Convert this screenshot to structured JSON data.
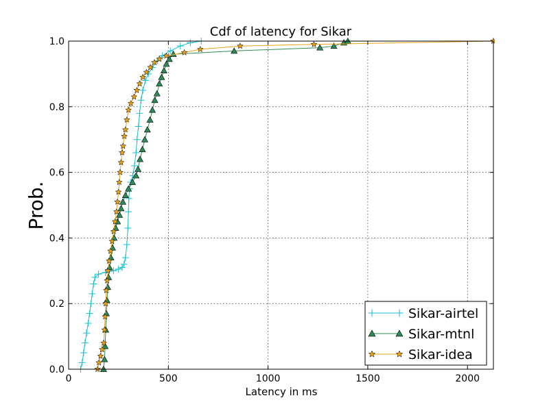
{
  "chart_data": {
    "type": "line",
    "title": "Cdf of latency for Sikar",
    "xlabel": "Latency in ms",
    "ylabel": "Prob.",
    "xlim": [
      0,
      2130
    ],
    "ylim": [
      0.0,
      1.0
    ],
    "x_ticks": [
      0,
      500,
      1000,
      1500,
      2000
    ],
    "x_tick_labels": [
      "0",
      "500",
      "1000",
      "1500",
      "2000"
    ],
    "y_ticks": [
      0.0,
      0.2,
      0.4,
      0.6,
      0.8,
      1.0
    ],
    "y_tick_labels": [
      "0.0",
      "0.2",
      "0.4",
      "0.6",
      "0.8",
      "1.0"
    ],
    "grid": true,
    "legend_position": "lower right",
    "series": [
      {
        "name": "Sikar-airtel",
        "color": "#17becf",
        "marker": "plus",
        "points": [
          [
            60,
            0.0
          ],
          [
            68,
            0.02
          ],
          [
            75,
            0.05
          ],
          [
            82,
            0.08
          ],
          [
            90,
            0.11
          ],
          [
            98,
            0.14
          ],
          [
            105,
            0.17
          ],
          [
            112,
            0.2
          ],
          [
            118,
            0.23
          ],
          [
            125,
            0.26
          ],
          [
            132,
            0.28
          ],
          [
            150,
            0.29
          ],
          [
            185,
            0.295
          ],
          [
            225,
            0.3
          ],
          [
            250,
            0.305
          ],
          [
            268,
            0.31
          ],
          [
            278,
            0.32
          ],
          [
            285,
            0.34
          ],
          [
            292,
            0.38
          ],
          [
            297,
            0.43
          ],
          [
            300,
            0.48
          ],
          [
            302,
            0.52
          ],
          [
            305,
            0.55
          ],
          [
            312,
            0.57
          ],
          [
            322,
            0.59
          ],
          [
            330,
            0.62
          ],
          [
            338,
            0.66
          ],
          [
            343,
            0.7
          ],
          [
            350,
            0.74
          ],
          [
            356,
            0.78
          ],
          [
            363,
            0.82
          ],
          [
            372,
            0.85
          ],
          [
            385,
            0.88
          ],
          [
            400,
            0.9
          ],
          [
            420,
            0.92
          ],
          [
            445,
            0.94
          ],
          [
            470,
            0.955
          ],
          [
            510,
            0.97
          ],
          [
            560,
            0.985
          ],
          [
            610,
            0.995
          ],
          [
            665,
            1.0
          ]
        ]
      },
      {
        "name": "Sikar-mtnl",
        "color": "#2e8b57",
        "marker": "triangle",
        "points": [
          [
            175,
            0.0
          ],
          [
            180,
            0.03
          ],
          [
            183,
            0.07
          ],
          [
            186,
            0.12
          ],
          [
            189,
            0.17
          ],
          [
            192,
            0.21
          ],
          [
            196,
            0.25
          ],
          [
            200,
            0.28
          ],
          [
            205,
            0.31
          ],
          [
            212,
            0.34
          ],
          [
            220,
            0.37
          ],
          [
            228,
            0.4
          ],
          [
            236,
            0.43
          ],
          [
            245,
            0.45
          ],
          [
            255,
            0.47
          ],
          [
            263,
            0.49
          ],
          [
            272,
            0.51
          ],
          [
            285,
            0.53
          ],
          [
            300,
            0.55
          ],
          [
            320,
            0.57
          ],
          [
            338,
            0.59
          ],
          [
            348,
            0.61
          ],
          [
            358,
            0.64
          ],
          [
            370,
            0.67
          ],
          [
            382,
            0.7
          ],
          [
            395,
            0.73
          ],
          [
            408,
            0.76
          ],
          [
            420,
            0.79
          ],
          [
            432,
            0.82
          ],
          [
            443,
            0.84
          ],
          [
            455,
            0.87
          ],
          [
            466,
            0.89
          ],
          [
            478,
            0.91
          ],
          [
            490,
            0.93
          ],
          [
            505,
            0.945
          ],
          [
            525,
            0.96
          ],
          [
            830,
            0.97
          ],
          [
            1260,
            0.98
          ],
          [
            1330,
            0.985
          ],
          [
            1380,
            0.995
          ],
          [
            1400,
            1.0
          ]
        ]
      },
      {
        "name": "Sikar-idea",
        "color": "#e8a317",
        "marker": "star",
        "points": [
          [
            145,
            0.0
          ],
          [
            152,
            0.02
          ],
          [
            160,
            0.04
          ],
          [
            168,
            0.06
          ],
          [
            176,
            0.08
          ],
          [
            180,
            0.12
          ],
          [
            183,
            0.16
          ],
          [
            186,
            0.2
          ],
          [
            189,
            0.24
          ],
          [
            193,
            0.27
          ],
          [
            197,
            0.3
          ],
          [
            203,
            0.33
          ],
          [
            210,
            0.36
          ],
          [
            218,
            0.39
          ],
          [
            226,
            0.42
          ],
          [
            233,
            0.45
          ],
          [
            240,
            0.48
          ],
          [
            245,
            0.51
          ],
          [
            250,
            0.54
          ],
          [
            254,
            0.57
          ],
          [
            258,
            0.6
          ],
          [
            263,
            0.63
          ],
          [
            268,
            0.66
          ],
          [
            273,
            0.68
          ],
          [
            279,
            0.71
          ],
          [
            285,
            0.73
          ],
          [
            292,
            0.76
          ],
          [
            300,
            0.79
          ],
          [
            312,
            0.81
          ],
          [
            328,
            0.83
          ],
          [
            342,
            0.85
          ],
          [
            356,
            0.87
          ],
          [
            372,
            0.89
          ],
          [
            390,
            0.905
          ],
          [
            410,
            0.92
          ],
          [
            430,
            0.935
          ],
          [
            455,
            0.945
          ],
          [
            490,
            0.955
          ],
          [
            580,
            0.965
          ],
          [
            660,
            0.975
          ],
          [
            860,
            0.985
          ],
          [
            1230,
            0.99
          ],
          [
            2130,
            1.0
          ]
        ]
      }
    ]
  }
}
